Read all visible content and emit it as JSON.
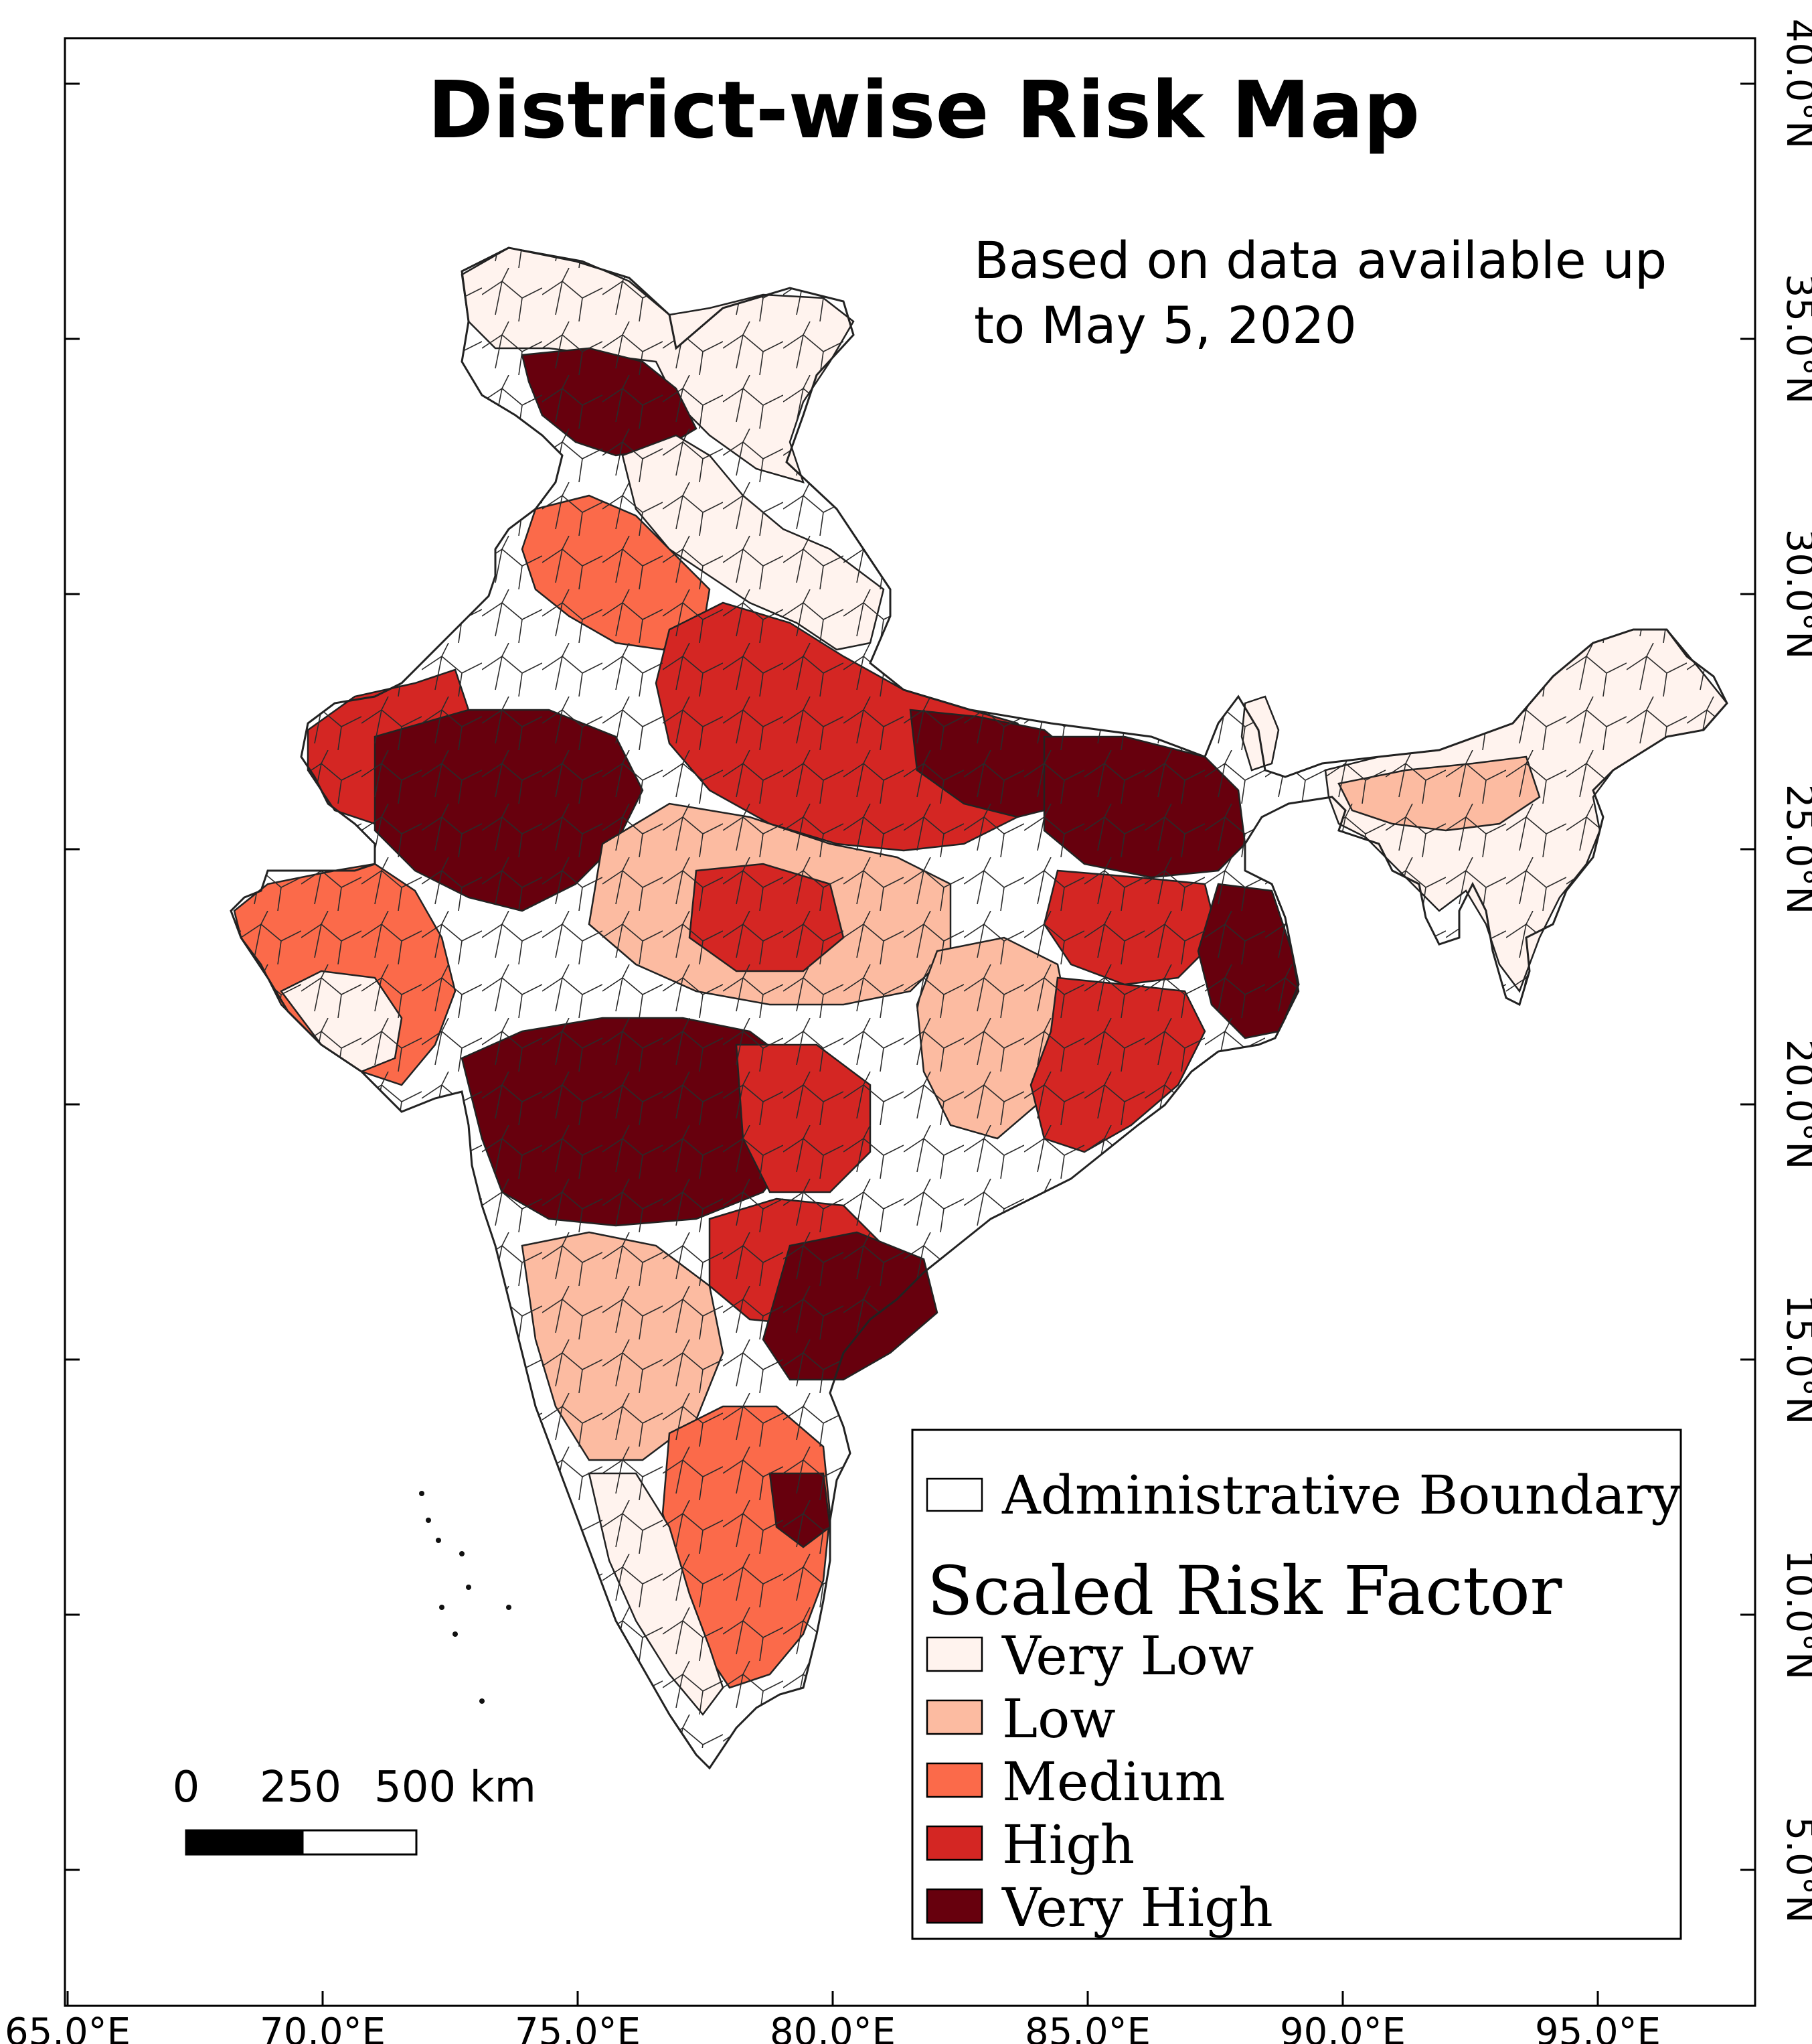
{
  "title": "District-wise Risk Map",
  "subtitle_line1": "Based on data available up",
  "subtitle_line2": "to May 5, 2020",
  "x_ticks": [
    "65.0°E",
    "70.0°E",
    "75.0°E",
    "80.0°E",
    "85.0°E",
    "90.0°E",
    "95.0°E"
  ],
  "y_ticks": [
    "40.0°N",
    "35.0°N",
    "30.0°N",
    "25.0°N",
    "20.0°N",
    "15.0°N",
    "10.0°N",
    "5.0°N"
  ],
  "legend": {
    "boundary_label": "Administrative Boundary",
    "heading": "Scaled Risk Factor",
    "classes": [
      {
        "label": "Very Low",
        "color": "#fff3ee"
      },
      {
        "label": "Low",
        "color": "#fcbba1"
      },
      {
        "label": "Medium",
        "color": "#fb6a4a"
      },
      {
        "label": "High",
        "color": "#d42623"
      },
      {
        "label": "Very High",
        "color": "#67000d"
      }
    ]
  },
  "scale_bar": {
    "labels": [
      "0",
      "250",
      "500 km"
    ]
  },
  "colors": {
    "very_low": "#fff3ee",
    "low": "#fcbba1",
    "medium": "#fb6a4a",
    "high": "#d42623",
    "very_high": "#67000d",
    "boundary": "#222222"
  }
}
